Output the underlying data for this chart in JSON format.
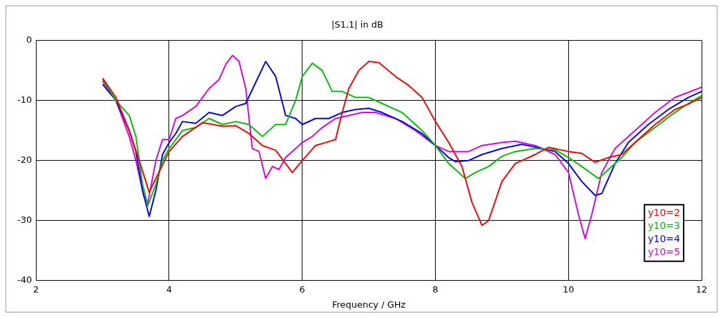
{
  "chart_data": {
    "type": "line",
    "title": "|S1,1| in dB",
    "xlabel": "Frequency / GHz",
    "xlim": [
      2,
      12
    ],
    "xticks": [
      2,
      4,
      6,
      8,
      10,
      12
    ],
    "ylim": [
      -40,
      0
    ],
    "yticks": [
      -40,
      -30,
      -20,
      -10,
      0
    ],
    "grid": true,
    "legend": "bottom right",
    "marker": "none",
    "line_style": "solid",
    "series": [
      {
        "name": "y10=2",
        "color": "#ff0000",
        "x": [
          3.0,
          3.2,
          3.4,
          3.55,
          3.7,
          3.8,
          4.0,
          4.2,
          4.5,
          4.8,
          5.0,
          5.2,
          5.4,
          5.6,
          5.75,
          5.85,
          6.0,
          6.2,
          6.35,
          6.5,
          6.6,
          6.7,
          6.85,
          7.0,
          7.15,
          7.4,
          7.6,
          7.8,
          8.0,
          8.2,
          8.4,
          8.55,
          8.7,
          8.8,
          9.0,
          9.2,
          9.5,
          9.7,
          10.0,
          10.2,
          10.4,
          10.6,
          10.8,
          11.0,
          11.3,
          11.6,
          11.8,
          12.0
        ],
        "values": [
          -6.3,
          -9.5,
          -15,
          -20,
          -25.3,
          -23,
          -18.5,
          -16,
          -13.7,
          -14.3,
          -14.2,
          -15.5,
          -17.5,
          -18.3,
          -20.5,
          -22,
          -20,
          -17.5,
          -17,
          -16.5,
          -12,
          -8,
          -5,
          -3.5,
          -3.7,
          -6,
          -7.5,
          -9.5,
          -13.5,
          -17,
          -21,
          -27,
          -30.8,
          -30,
          -23.5,
          -20.5,
          -19,
          -17.8,
          -18.5,
          -18.8,
          -20.3,
          -19.5,
          -19,
          -17,
          -14,
          -11.5,
          -10.6,
          -9.5
        ]
      },
      {
        "name": "y10=3",
        "color": "#00c000",
        "x": [
          3.0,
          3.2,
          3.4,
          3.5,
          3.6,
          3.68,
          3.8,
          3.9,
          4.0,
          4.2,
          4.4,
          4.6,
          4.8,
          5.0,
          5.2,
          5.4,
          5.6,
          5.75,
          5.9,
          6.0,
          6.15,
          6.3,
          6.45,
          6.6,
          6.8,
          7.0,
          7.2,
          7.5,
          7.8,
          8.0,
          8.2,
          8.45,
          8.6,
          8.8,
          9.0,
          9.2,
          9.5,
          9.8,
          10.0,
          10.2,
          10.45,
          10.6,
          10.8,
          11.0,
          11.3,
          11.6,
          11.8,
          12.0
        ],
        "values": [
          -6.5,
          -10,
          -12.5,
          -16,
          -24,
          -27.5,
          -24,
          -20,
          -18,
          -15,
          -14.5,
          -13,
          -14,
          -13.5,
          -14,
          -16,
          -14,
          -14,
          -10,
          -6,
          -3.8,
          -5,
          -8.5,
          -8.5,
          -9.5,
          -9.5,
          -10.5,
          -12,
          -15,
          -17.5,
          -20.5,
          -23,
          -22,
          -21,
          -19.3,
          -18.5,
          -18,
          -18.2,
          -19.5,
          -21,
          -23,
          -21.5,
          -19.5,
          -17,
          -14.5,
          -12,
          -10.5,
          -9.2
        ]
      },
      {
        "name": "y10=4",
        "color": "#0000ff",
        "x": [
          3.0,
          3.2,
          3.4,
          3.5,
          3.6,
          3.7,
          3.8,
          3.9,
          4.0,
          4.1,
          4.2,
          4.4,
          4.6,
          4.8,
          5.0,
          5.15,
          5.3,
          5.45,
          5.6,
          5.75,
          5.9,
          6.0,
          6.2,
          6.4,
          6.6,
          6.8,
          7.0,
          7.2,
          7.5,
          7.8,
          8.0,
          8.2,
          8.3,
          8.5,
          8.7,
          9.0,
          9.3,
          9.6,
          9.8,
          10.0,
          10.2,
          10.4,
          10.5,
          10.7,
          10.9,
          11.2,
          11.5,
          11.8,
          12.0
        ],
        "values": [
          -7.3,
          -10,
          -15,
          -18.5,
          -25,
          -29.3,
          -25,
          -19,
          -17,
          -15.5,
          -13.5,
          -13.8,
          -12,
          -12.5,
          -11,
          -10.5,
          -7,
          -3.5,
          -6,
          -12.5,
          -13,
          -14,
          -13,
          -13,
          -12,
          -11.5,
          -11.3,
          -12,
          -13.5,
          -15.5,
          -17.5,
          -19.5,
          -20.2,
          -20,
          -19,
          -18,
          -17.3,
          -18,
          -18.5,
          -20.5,
          -23.5,
          -25.8,
          -25.5,
          -20.5,
          -17,
          -14,
          -11.5,
          -9.5,
          -8.5
        ]
      },
      {
        "name": "y10=5",
        "color": "#e000e0",
        "x": [
          3.0,
          3.2,
          3.4,
          3.5,
          3.62,
          3.68,
          3.8,
          3.9,
          4.0,
          4.1,
          4.2,
          4.4,
          4.6,
          4.75,
          4.85,
          4.95,
          5.05,
          5.15,
          5.25,
          5.35,
          5.45,
          5.55,
          5.65,
          5.75,
          5.9,
          6.0,
          6.15,
          6.3,
          6.5,
          6.7,
          6.9,
          7.1,
          7.4,
          7.7,
          8.0,
          8.2,
          8.5,
          8.7,
          9.0,
          9.2,
          9.5,
          9.8,
          10.0,
          10.15,
          10.25,
          10.35,
          10.5,
          10.7,
          11.0,
          11.3,
          11.6,
          12.0
        ],
        "values": [
          -6.8,
          -10,
          -16,
          -20,
          -26,
          -27,
          -20,
          -16.5,
          -16.5,
          -13,
          -12.5,
          -11,
          -8,
          -6.5,
          -4,
          -2.5,
          -3.5,
          -8,
          -18,
          -18.5,
          -23,
          -21,
          -21.5,
          -19.5,
          -18,
          -17,
          -16,
          -14.5,
          -13,
          -12.5,
          -12,
          -12,
          -13,
          -15,
          -17.5,
          -18.5,
          -18.5,
          -17.5,
          -17,
          -16.8,
          -17.5,
          -19,
          -22,
          -29,
          -33,
          -29,
          -22,
          -18,
          -15,
          -12,
          -9.5,
          -7.8
        ]
      }
    ]
  }
}
